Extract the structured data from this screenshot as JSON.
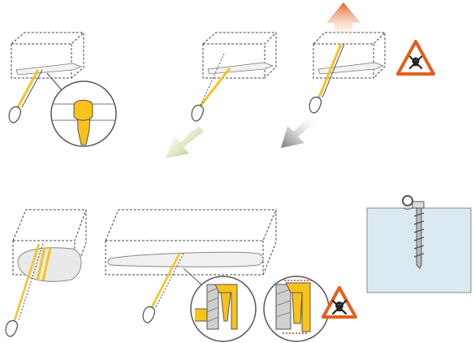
{
  "panels": [
    {
      "id": "anchor-sling-girth-hitch",
      "status": "correct"
    },
    {
      "id": "anchor-sling-pull-down",
      "status": "correct",
      "arrow": "green"
    },
    {
      "id": "anchor-sling-pull-up",
      "status": "danger",
      "arrow": "orange"
    },
    {
      "id": "block-wrap-sling",
      "status": "correct"
    },
    {
      "id": "long-bar-wrap",
      "status": "correct"
    },
    {
      "id": "edge-protection-ok",
      "status": "correct"
    },
    {
      "id": "sharp-edge-danger",
      "status": "danger"
    },
    {
      "id": "ice-screw",
      "status": "info"
    }
  ],
  "colors": {
    "sling": "#f7c21a",
    "outline": "#555555",
    "danger": "#e2601b",
    "ok_arrow": "#8cb43c",
    "bad_arrow_top": "#e2601b",
    "ice": "#dbeaf2"
  },
  "icons": [
    "skull-crossbones-icon",
    "warning-triangle-icon",
    "carabiner-icon",
    "arrow-down-left-icon",
    "arrow-up-icon"
  ]
}
